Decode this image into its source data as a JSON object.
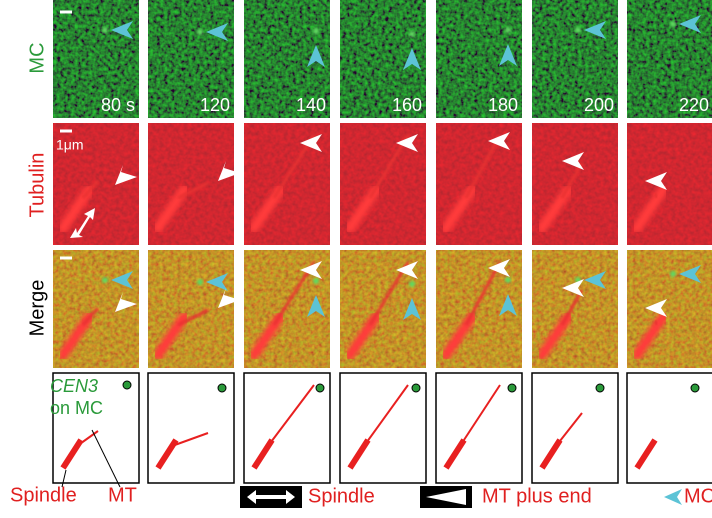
{
  "row_labels": [
    "MC",
    "Tubulin",
    "Merge"
  ],
  "time_labels": [
    "80 s",
    "120",
    "140",
    "160",
    "180",
    "200",
    "220"
  ],
  "scale_bar_label": "1μm",
  "diagram_labels": {
    "gene": "CEN3",
    "gene_suffix": "on MC",
    "spindle": "Spindle",
    "mt": "MT"
  },
  "legend": {
    "spindle": "Spindle",
    "mt_plus_end": "MT plus end",
    "mc": "MC"
  }
}
